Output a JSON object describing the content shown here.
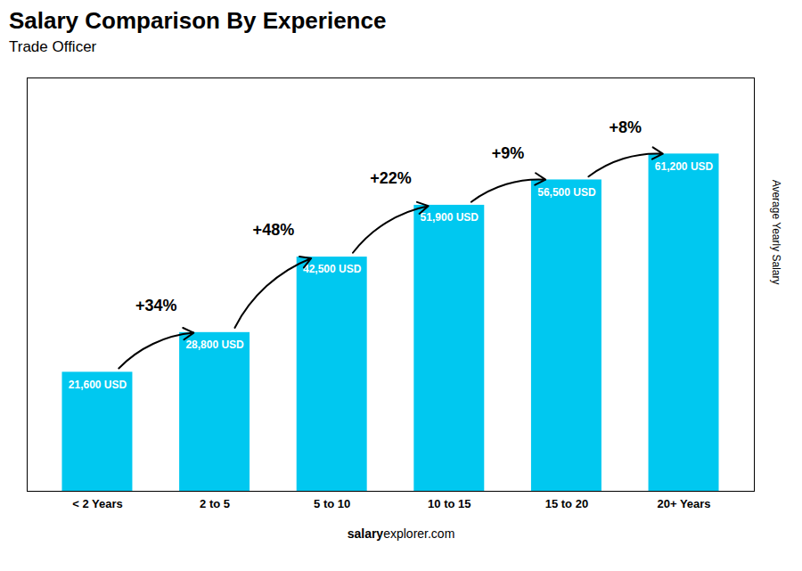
{
  "chart_data": {
    "type": "bar",
    "title": "Salary Comparison By Experience",
    "subtitle": "Trade Officer",
    "categories": [
      "< 2 Years",
      "2 to 5",
      "5 to 10",
      "10 to 15",
      "15 to 20",
      "20+ Years"
    ],
    "values": [
      21600,
      28800,
      42500,
      51900,
      56500,
      61200
    ],
    "value_labels": [
      "21,600 USD",
      "28,800 USD",
      "42,500 USD",
      "51,900 USD",
      "56,500 USD",
      "61,200 USD"
    ],
    "data_labels": true,
    "color": "#00c8f0",
    "ylabel": "Average Yearly Salary",
    "ylim": [
      0,
      75000
    ],
    "tick_labels": "x",
    "grid": false,
    "annotations": [
      "+34%",
      "+48%",
      "+22%",
      "+9%",
      "+8%"
    ],
    "footer": [
      "salary",
      "explorer.com"
    ]
  }
}
